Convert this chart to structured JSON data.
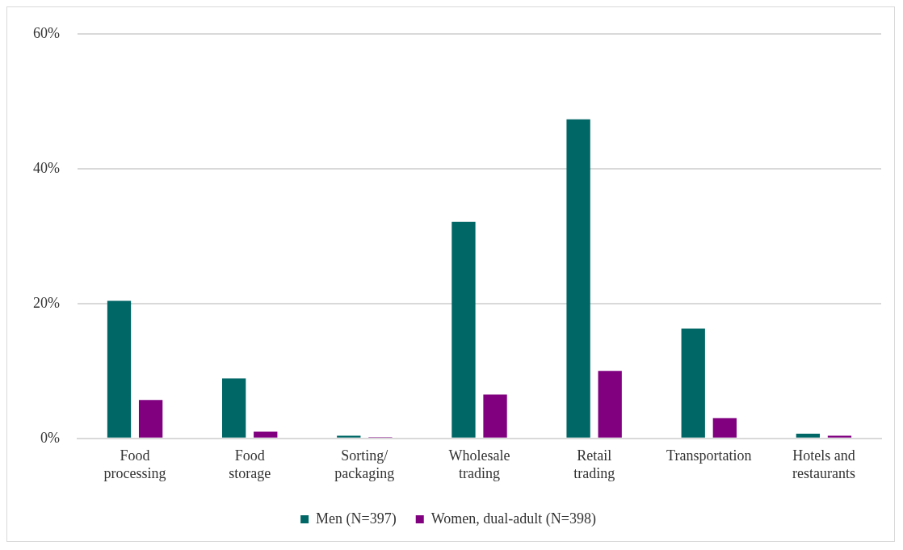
{
  "chart_data": {
    "type": "bar",
    "categories": [
      "Food processing",
      "Food storage",
      "Sorting/ packaging",
      "Wholesale trading",
      "Retail trading",
      "Transportation",
      "Hotels and restaurants"
    ],
    "series": [
      {
        "name": "Men (N=397)",
        "color": "#006666",
        "values": [
          20.4,
          8.9,
          0.4,
          32.1,
          47.3,
          16.3,
          0.7
        ]
      },
      {
        "name": "Women, dual-adult (N=398)",
        "color": "#800080",
        "values": [
          5.7,
          1.0,
          0.2,
          6.5,
          10.0,
          3.0,
          0.4
        ]
      }
    ],
    "ylim": [
      0,
      60
    ],
    "yticks": [
      {
        "value": 0,
        "label": "0%"
      },
      {
        "value": 20,
        "label": "20%"
      },
      {
        "value": 40,
        "label": "40%"
      },
      {
        "value": 60,
        "label": "60%"
      }
    ],
    "grid": "y",
    "legend": "bottom"
  }
}
